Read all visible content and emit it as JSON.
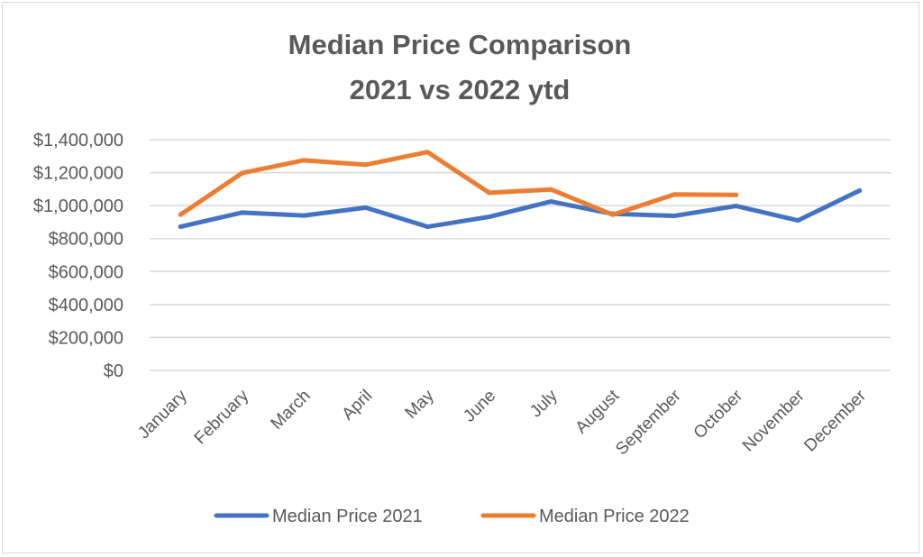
{
  "chart_data": {
    "type": "line",
    "title": "Median Price Comparison",
    "subtitle": "2021 vs 2022 ytd",
    "categories": [
      "January",
      "February",
      "March",
      "April",
      "May",
      "June",
      "July",
      "August",
      "September",
      "October",
      "November",
      "December"
    ],
    "series": [
      {
        "name": "Median Price 2021",
        "color": "#4472C4",
        "values": [
          872000,
          958000,
          940000,
          988000,
          872000,
          932000,
          1025000,
          950000,
          938000,
          998000,
          910000,
          1092000
        ]
      },
      {
        "name": "Median Price 2022",
        "color": "#ED7D31",
        "values": [
          945000,
          1198000,
          1275000,
          1248000,
          1325000,
          1078000,
          1098000,
          945000,
          1068000,
          1065000,
          null,
          null
        ]
      }
    ],
    "ylim": [
      0,
      1400000
    ],
    "yticks": [
      0,
      200000,
      400000,
      600000,
      800000,
      1000000,
      1200000,
      1400000
    ],
    "ytick_labels": [
      "$0",
      "$200,000",
      "$400,000",
      "$600,000",
      "$800,000",
      "$1,000,000",
      "$1,200,000",
      "$1,400,000"
    ],
    "xlabel": "",
    "ylabel": "",
    "grid": true,
    "legend": "bottom"
  }
}
